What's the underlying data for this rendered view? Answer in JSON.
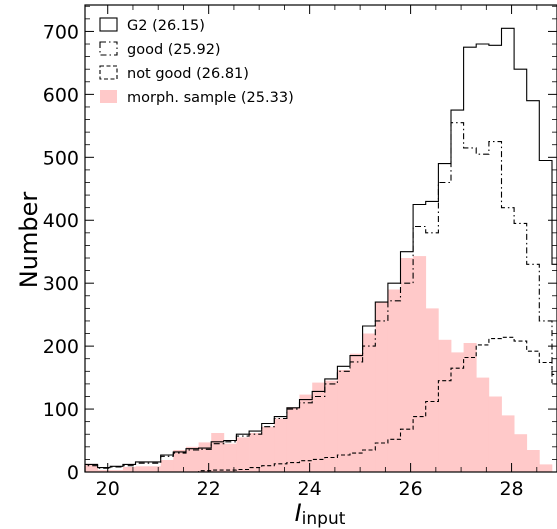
{
  "chart_data": {
    "type": "histogram",
    "ylabel": "Number",
    "xlabel_main": "I",
    "xlabel_sub": "input",
    "xlim": [
      19.55,
      28.9
    ],
    "ylim": [
      0,
      742
    ],
    "xticks": [
      20,
      22,
      24,
      26,
      28
    ],
    "yticks": [
      0,
      100,
      200,
      300,
      400,
      500,
      600,
      700
    ],
    "bin_start": 19.55,
    "bin_width": 0.25,
    "legend_position": "top-left",
    "series": [
      {
        "name": "G2 (26.15)",
        "style": "step-solid",
        "color": "#000000",
        "values": [
          12,
          7,
          9,
          12,
          16,
          16,
          27,
          32,
          37,
          38,
          48,
          50,
          60,
          65,
          77,
          88,
          102,
          115,
          128,
          148,
          168,
          185,
          232,
          270,
          300,
          350,
          425,
          430,
          490,
          575,
          675,
          680,
          678,
          705,
          640,
          590,
          495,
          330,
          150,
          55,
          20,
          0
        ]
      },
      {
        "name": "good (25.92)",
        "style": "step-dashdot",
        "color": "#000000",
        "values": [
          10,
          6,
          8,
          10,
          14,
          14,
          25,
          30,
          35,
          36,
          45,
          48,
          57,
          60,
          72,
          85,
          100,
          110,
          120,
          140,
          160,
          175,
          200,
          240,
          272,
          300,
          390,
          380,
          460,
          555,
          515,
          505,
          525,
          420,
          395,
          330,
          240,
          155,
          75,
          30,
          10,
          0
        ]
      },
      {
        "name": "not good (26.81)",
        "style": "step-dashed",
        "color": "#000000",
        "values": [
          0,
          0,
          0,
          0,
          0,
          0,
          0,
          0,
          0,
          2,
          3,
          3,
          4,
          7,
          10,
          13,
          15,
          18,
          20,
          23,
          27,
          30,
          35,
          46,
          52,
          68,
          88,
          112,
          145,
          165,
          182,
          202,
          212,
          214,
          208,
          192,
          174,
          140,
          92,
          52,
          18,
          5
        ]
      },
      {
        "name": "morph. sample (25.33)",
        "style": "filled",
        "color": "#ffc9c9",
        "values": [
          13,
          3,
          3,
          8,
          9,
          9,
          19,
          35,
          40,
          47,
          62,
          45,
          55,
          62,
          72,
          85,
          103,
          123,
          142,
          145,
          162,
          188,
          220,
          270,
          290,
          340,
          343,
          260,
          210,
          190,
          205,
          150,
          120,
          90,
          60,
          35,
          12,
          0,
          0,
          0,
          0,
          0
        ]
      }
    ]
  }
}
